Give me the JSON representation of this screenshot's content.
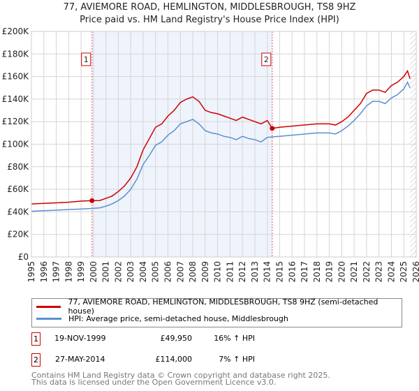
{
  "title": "77, AVIEMORE ROAD, HEMLINGTON, MIDDLESBROUGH, TS8 9HZ",
  "subtitle": "Price paid vs. HM Land Registry's House Price Index (HPI)",
  "chart_data": {
    "type": "line",
    "xlim": [
      1995,
      2026
    ],
    "ylim": [
      0,
      200000
    ],
    "yticks": [
      {
        "v": 0,
        "l": "£0"
      },
      {
        "v": 20000,
        "l": "£20K"
      },
      {
        "v": 40000,
        "l": "£40K"
      },
      {
        "v": 60000,
        "l": "£60K"
      },
      {
        "v": 80000,
        "l": "£80K"
      },
      {
        "v": 100000,
        "l": "£100K"
      },
      {
        "v": 120000,
        "l": "£120K"
      },
      {
        "v": 140000,
        "l": "£140K"
      },
      {
        "v": 160000,
        "l": "£160K"
      },
      {
        "v": 180000,
        "l": "£180K"
      },
      {
        "v": 200000,
        "l": "£200K"
      }
    ],
    "xticks": [
      "1995",
      "1996",
      "1997",
      "1998",
      "1999",
      "2000",
      "2001",
      "2002",
      "2003",
      "2004",
      "2005",
      "2006",
      "2007",
      "2008",
      "2009",
      "2010",
      "2011",
      "2012",
      "2013",
      "2014",
      "2015",
      "2016",
      "2017",
      "2018",
      "2019",
      "2020",
      "2021",
      "2022",
      "2023",
      "2024",
      "2025",
      "2026"
    ],
    "shaded_range": [
      1999.88,
      2014.4
    ],
    "hatch_from": 2025.5,
    "series": [
      {
        "name": "77, AVIEMORE ROAD, HEMLINGTON, MIDDLESBROUGH, TS8 9HZ (semi-detached house)",
        "color": "#cc0000",
        "x": [
          1995,
          1996,
          1997,
          1998,
          1999,
          1999.88,
          2000.5,
          2001,
          2001.5,
          2002,
          2002.5,
          2003,
          2003.5,
          2004,
          2004.5,
          2005,
          2005.5,
          2006,
          2006.5,
          2007,
          2007.5,
          2008,
          2008.5,
          2009,
          2009.5,
          2010,
          2010.5,
          2011,
          2011.5,
          2012,
          2012.5,
          2013,
          2013.5,
          2014,
          2014.4,
          2015,
          2016,
          2017,
          2018,
          2019,
          2019.5,
          2020,
          2020.5,
          2021,
          2021.5,
          2022,
          2022.5,
          2023,
          2023.5,
          2024,
          2024.5,
          2025,
          2025.3,
          2025.5
        ],
        "y": [
          47000,
          47500,
          48000,
          48500,
          49500,
          49950,
          50000,
          52000,
          54000,
          58000,
          63000,
          70000,
          80000,
          95000,
          105000,
          115000,
          118000,
          125000,
          130000,
          137000,
          140000,
          142000,
          138000,
          130000,
          128000,
          127000,
          125000,
          123000,
          121000,
          124000,
          122000,
          120000,
          118000,
          121000,
          114000,
          115000,
          116000,
          117000,
          118000,
          118000,
          117000,
          120000,
          124000,
          130000,
          136000,
          145000,
          148000,
          148000,
          146000,
          152000,
          155000,
          160000,
          165000,
          158000
        ]
      },
      {
        "name": "HPI: Average price, semi-detached house, Middlesbrough",
        "color": "#5b8fd0",
        "x": [
          1995,
          1996,
          1997,
          1998,
          1999,
          1999.88,
          2000.5,
          2001,
          2001.5,
          2002,
          2002.5,
          2003,
          2003.5,
          2004,
          2004.5,
          2005,
          2005.5,
          2006,
          2006.5,
          2007,
          2007.5,
          2008,
          2008.5,
          2009,
          2009.5,
          2010,
          2010.5,
          2011,
          2011.5,
          2012,
          2012.5,
          2013,
          2013.5,
          2014,
          2014.4,
          2015,
          2016,
          2017,
          2018,
          2019,
          2019.5,
          2020,
          2020.5,
          2021,
          2021.5,
          2022,
          2022.5,
          2023,
          2023.5,
          2024,
          2024.5,
          2025,
          2025.3,
          2025.5
        ],
        "y": [
          40500,
          41000,
          41500,
          42000,
          42500,
          43000,
          43500,
          45000,
          47000,
          50000,
          54000,
          60000,
          69000,
          82000,
          90000,
          99000,
          102000,
          108000,
          112000,
          118000,
          120000,
          122000,
          118000,
          112000,
          110000,
          109000,
          107000,
          106000,
          104000,
          107000,
          105000,
          104000,
          102000,
          106000,
          106500,
          107000,
          108000,
          109000,
          110000,
          110000,
          109000,
          112000,
          116000,
          121000,
          127000,
          134000,
          138000,
          138000,
          136000,
          141000,
          144000,
          149000,
          155000,
          150000
        ]
      }
    ],
    "markers": [
      {
        "label": "1",
        "x": 1999.88,
        "y": 49950
      },
      {
        "label": "2",
        "x": 2014.4,
        "y": 114000
      }
    ]
  },
  "legend": {
    "red": "77, AVIEMORE ROAD, HEMLINGTON, MIDDLESBROUGH, TS8 9HZ (semi-detached house)",
    "blue": "HPI: Average price, semi-detached house, Middlesbrough"
  },
  "sales": [
    {
      "n": "1",
      "date": "19-NOV-1999",
      "price": "£49,950",
      "hpi": "16% ↑ HPI"
    },
    {
      "n": "2",
      "date": "27-MAY-2014",
      "price": "£114,000",
      "hpi": "7% ↑ HPI"
    }
  ],
  "footer": {
    "line1": "Contains HM Land Registry data © Crown copyright and database right 2025.",
    "line2": "This data is licensed under the Open Government Licence v3.0."
  }
}
